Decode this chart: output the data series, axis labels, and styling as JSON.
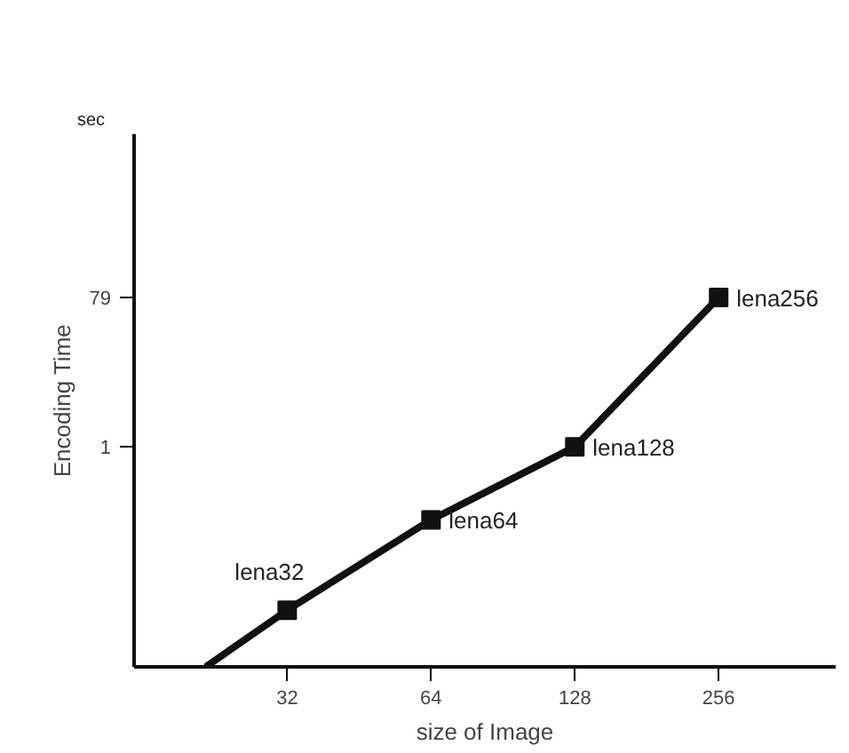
{
  "chart_data": {
    "type": "line",
    "xlabel": "size of Image",
    "ylabel": "Encoding Time",
    "log": "xy",
    "xlim": [
      15.3,
      450
    ],
    "xticks": [
      32,
      64,
      128,
      256
    ],
    "ylim": [
      0.0016,
      9400
    ],
    "yticks": [
      1,
      79
    ],
    "grid": false,
    "series": [
      {
        "color": "#111111",
        "x": [
          21.6,
          32
        ],
        "values": [
          0.0016,
          0.0084
        ]
      },
      {
        "color": "#111111",
        "x": [
          32,
          64,
          128,
          256
        ],
        "values": [
          0.0084,
          0.118,
          1,
          79
        ],
        "marker": "square"
      }
    ],
    "annotations": [
      "sec",
      {
        "text": "lena32",
        "x": 32,
        "y": 0.0084
      },
      {
        "text": "lena64",
        "x": 64,
        "y": 0.118
      },
      {
        "text": "lena128",
        "x": 128,
        "y": 1
      },
      {
        "text": "lena256",
        "x": 256,
        "y": 79
      }
    ]
  }
}
